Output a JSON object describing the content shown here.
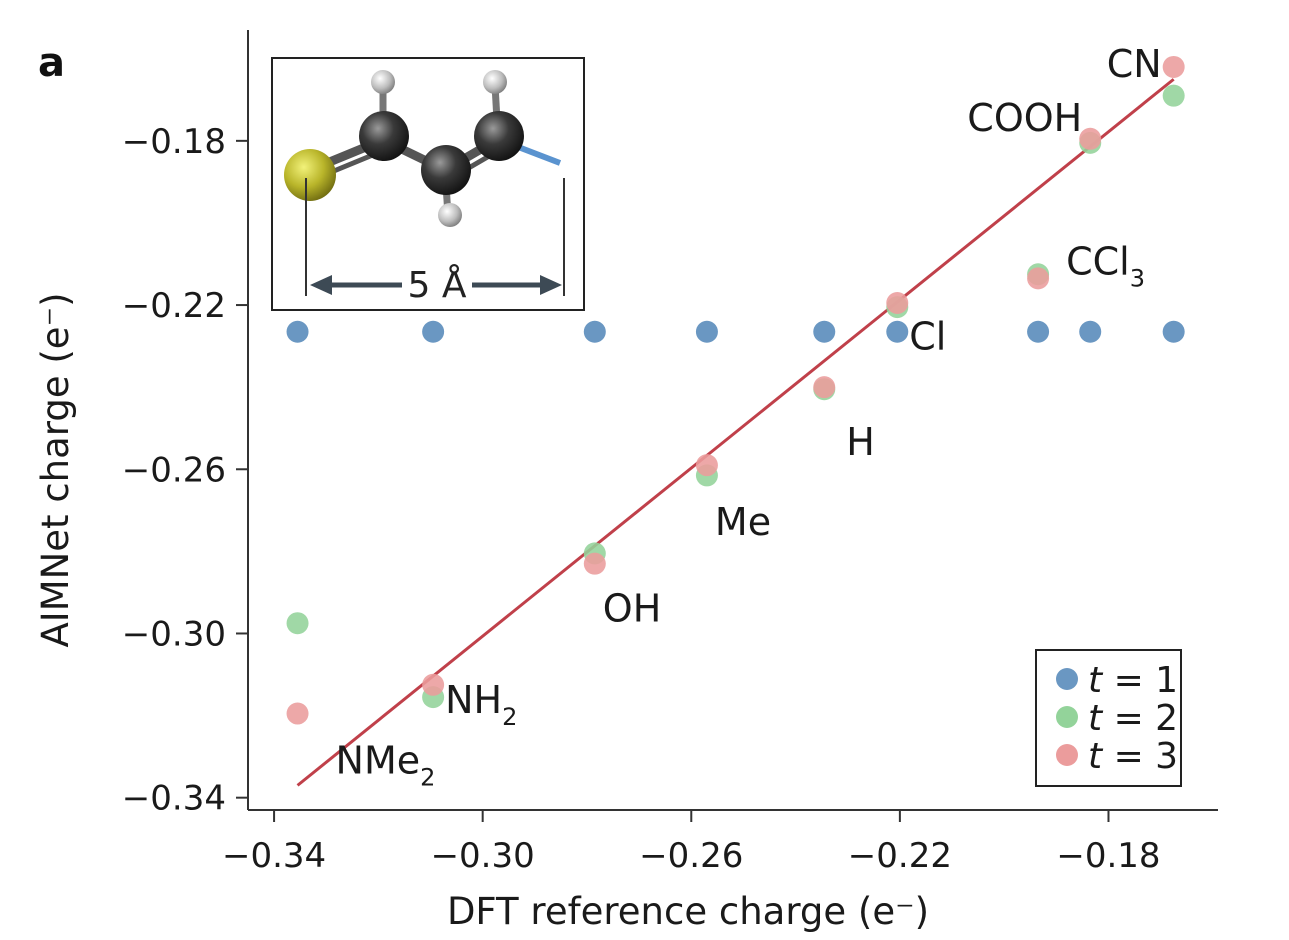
{
  "panel_label": "a",
  "colors": {
    "t1": "#6a97c2",
    "t2": "#93d39a",
    "t3": "#eb9c9c",
    "fit_line": "#c0404a",
    "axis": "#333333"
  },
  "inset": {
    "scale_label": "5 Å"
  },
  "chart_data": {
    "type": "scatter",
    "title": "",
    "xlabel": "DFT reference charge (e⁻)",
    "ylabel": "AIMNet charge (e⁻)",
    "xlim": [
      -0.345,
      -0.159
    ],
    "ylim": [
      -0.343,
      -0.153
    ],
    "x_ticks": [
      -0.34,
      -0.3,
      -0.26,
      -0.22,
      -0.18
    ],
    "x_tick_labels": [
      "−0.34",
      "−0.30",
      "−0.26",
      "−0.22",
      "−0.18"
    ],
    "y_ticks": [
      -0.34,
      -0.3,
      -0.26,
      -0.22,
      -0.18
    ],
    "y_tick_labels": [
      "−0.34",
      "−0.30",
      "−0.26",
      "−0.22",
      "−0.18"
    ],
    "legend_position": "bottom-right",
    "grid": false,
    "x": [
      -0.3355,
      -0.3095,
      -0.2785,
      -0.257,
      -0.2345,
      -0.2205,
      -0.1935,
      -0.1835,
      -0.1675
    ],
    "substituents": [
      {
        "text": "NMe",
        "sub": "2"
      },
      {
        "text": "NH",
        "sub": "2"
      },
      {
        "text": "OH",
        "sub": ""
      },
      {
        "text": "Me",
        "sub": ""
      },
      {
        "text": "H",
        "sub": ""
      },
      {
        "text": "Cl",
        "sub": ""
      },
      {
        "text": "CCl",
        "sub": "3"
      },
      {
        "text": "COOH",
        "sub": ""
      },
      {
        "text": "CN",
        "sub": ""
      }
    ],
    "series": [
      {
        "name": "t = 1",
        "var": "t",
        "num": "1",
        "color_key": "t1",
        "values": [
          -0.2265,
          -0.2265,
          -0.2265,
          -0.2265,
          -0.2265,
          -0.2265,
          -0.2265,
          -0.2265,
          -0.2265
        ]
      },
      {
        "name": "t = 2",
        "var": "t",
        "num": "2",
        "color_key": "t2",
        "values": [
          -0.2975,
          -0.3155,
          -0.2805,
          -0.2615,
          -0.2405,
          -0.2205,
          -0.2125,
          -0.1805,
          -0.169
        ]
      },
      {
        "name": "t = 3",
        "var": "t",
        "num": "3",
        "color_key": "t3",
        "values": [
          -0.3195,
          -0.3125,
          -0.283,
          -0.259,
          -0.24,
          -0.2195,
          -0.2135,
          -0.1795,
          -0.162
        ]
      }
    ],
    "fit_line": {
      "x": [
        -0.3355,
        -0.1675
      ],
      "y": [
        -0.337,
        -0.165
      ]
    }
  }
}
